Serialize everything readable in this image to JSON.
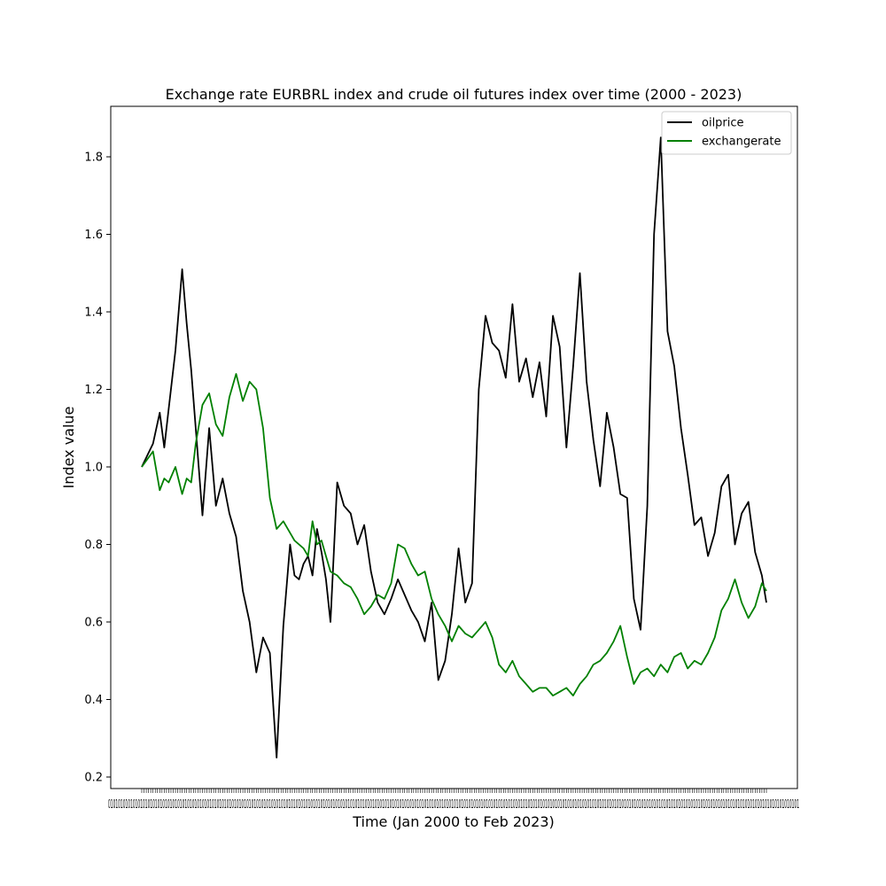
{
  "chart_data": {
    "type": "line",
    "title": "Exchange rate EURBRL index and crude oil futures index over time (2000 - 2023)",
    "xlabel": "Time (Jan 2000 to Feb 2023)",
    "ylabel": "Index value",
    "ylim": [
      0.17,
      1.93
    ],
    "yticks": [
      0.2,
      0.4,
      0.6,
      0.8,
      1.0,
      1.2,
      1.4,
      1.6,
      1.8
    ],
    "ytick_labels": [
      "0.2",
      "0.4",
      "0.6",
      "0.8",
      "1.0",
      "1.2",
      "1.4",
      "1.6",
      "1.8"
    ],
    "x_tick_labels_note": "overlapping monthly tick labels",
    "legend_position": "top-right",
    "grid": false,
    "x_points": [
      0,
      5,
      8,
      10,
      12,
      15,
      18,
      20,
      22,
      24,
      27,
      30,
      33,
      36,
      39,
      42,
      45,
      48,
      51,
      54,
      57,
      60,
      63,
      66,
      68,
      70,
      72,
      74,
      76,
      78,
      80,
      82,
      84,
      87,
      90,
      93,
      96,
      99,
      102,
      105,
      108,
      111,
      114,
      117,
      120,
      123,
      126,
      129,
      132,
      135,
      138,
      141,
      144,
      147,
      150,
      153,
      156,
      159,
      162,
      165,
      168,
      171,
      174,
      177,
      180,
      183,
      186,
      189,
      192,
      195,
      198,
      201,
      204,
      207,
      210,
      213,
      216,
      219,
      222,
      225,
      228,
      231,
      234,
      237,
      240,
      243,
      246,
      249,
      252,
      255,
      258,
      261,
      264,
      267,
      270,
      273,
      276,
      278
    ],
    "series": [
      {
        "name": "oilprice",
        "color": "#000000",
        "values": [
          1.0,
          1.06,
          1.14,
          1.05,
          1.15,
          1.3,
          1.51,
          1.37,
          1.25,
          1.1,
          0.875,
          1.1,
          0.9,
          0.97,
          0.88,
          0.82,
          0.68,
          0.6,
          0.47,
          0.56,
          0.52,
          0.25,
          0.59,
          0.8,
          0.72,
          0.71,
          0.75,
          0.77,
          0.72,
          0.84,
          0.78,
          0.71,
          0.6,
          0.96,
          0.9,
          0.88,
          0.8,
          0.85,
          0.73,
          0.65,
          0.62,
          0.66,
          0.71,
          0.67,
          0.63,
          0.6,
          0.55,
          0.65,
          0.45,
          0.5,
          0.62,
          0.79,
          0.65,
          0.7,
          1.2,
          1.39,
          1.32,
          1.3,
          1.23,
          1.42,
          1.22,
          1.28,
          1.18,
          1.27,
          1.13,
          1.39,
          1.31,
          1.05,
          1.26,
          1.5,
          1.22,
          1.07,
          0.95,
          1.14,
          1.05,
          0.93,
          0.92,
          0.66,
          0.58,
          0.9,
          1.6,
          1.85,
          1.35,
          1.26,
          1.1,
          0.98,
          0.85,
          0.87,
          0.77,
          0.83,
          0.95,
          0.98,
          0.8,
          0.88,
          0.91,
          0.78,
          0.72,
          0.65
        ]
      },
      {
        "name": "exchangerate",
        "color": "#008000",
        "values": [
          1.0,
          1.04,
          0.94,
          0.97,
          0.96,
          1.0,
          0.93,
          0.97,
          0.96,
          1.06,
          1.16,
          1.19,
          1.11,
          1.08,
          1.18,
          1.24,
          1.17,
          1.22,
          1.2,
          1.1,
          0.92,
          0.84,
          0.86,
          0.83,
          0.81,
          0.8,
          0.79,
          0.77,
          0.86,
          0.8,
          0.81,
          0.77,
          0.73,
          0.72,
          0.7,
          0.69,
          0.66,
          0.62,
          0.64,
          0.67,
          0.66,
          0.7,
          0.8,
          0.79,
          0.75,
          0.72,
          0.73,
          0.66,
          0.62,
          0.59,
          0.55,
          0.59,
          0.57,
          0.56,
          0.58,
          0.6,
          0.56,
          0.49,
          0.47,
          0.5,
          0.46,
          0.44,
          0.42,
          0.43,
          0.43,
          0.41,
          0.42,
          0.43,
          0.41,
          0.44,
          0.46,
          0.49,
          0.5,
          0.52,
          0.55,
          0.59,
          0.51,
          0.44,
          0.47,
          0.48,
          0.46,
          0.49,
          0.47,
          0.51,
          0.52,
          0.48,
          0.5,
          0.49,
          0.52,
          0.56,
          0.63,
          0.66,
          0.71,
          0.65,
          0.61,
          0.64,
          0.7,
          0.68
        ]
      }
    ]
  }
}
